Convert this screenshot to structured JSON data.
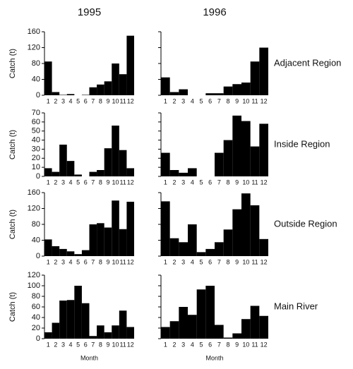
{
  "chart_data": [
    {
      "type": "bar",
      "title": "1995",
      "ylabel": "Catch (t)",
      "categories": [
        1,
        2,
        3,
        4,
        5,
        6,
        7,
        8,
        9,
        10,
        11,
        12
      ],
      "values": [
        85,
        8,
        1,
        3,
        0,
        1,
        20,
        27,
        35,
        80,
        53,
        150
      ],
      "color": "#000000",
      "ylim": [
        0,
        160
      ],
      "yticks": [
        0,
        40,
        80,
        120,
        160
      ]
    },
    {
      "type": "bar",
      "title": "1996",
      "annotation": "Adjacent Region",
      "categories": [
        1,
        2,
        3,
        4,
        5,
        6,
        7,
        8,
        9,
        10,
        11,
        12
      ],
      "values": [
        45,
        8,
        15,
        0,
        0,
        5,
        5,
        22,
        28,
        32,
        85,
        120
      ],
      "color": "#000000",
      "ylim": [
        0,
        160
      ],
      "yticks": [
        0,
        40,
        80,
        120,
        160
      ]
    },
    {
      "type": "bar",
      "ylabel": "Catch (t)",
      "categories": [
        1,
        2,
        3,
        4,
        5,
        6,
        7,
        8,
        9,
        10,
        11,
        12
      ],
      "values": [
        9,
        5,
        35,
        17,
        2,
        0,
        5,
        7,
        31,
        56,
        29,
        9
      ],
      "color": "#000000",
      "ylim": [
        0,
        70
      ],
      "yticks": [
        0,
        10,
        20,
        30,
        40,
        50,
        60,
        70
      ]
    },
    {
      "type": "bar",
      "annotation": "Inside Region",
      "categories": [
        1,
        2,
        3,
        4,
        5,
        6,
        7,
        8,
        9,
        10,
        11,
        12
      ],
      "values": [
        26,
        7,
        4,
        9,
        0,
        0,
        26,
        40,
        67,
        61,
        33,
        58
      ],
      "color": "#000000",
      "ylim": [
        0,
        70
      ],
      "yticks": [
        0,
        10,
        20,
        30,
        40,
        50,
        60,
        70
      ]
    },
    {
      "type": "bar",
      "ylabel": "Catch (t)",
      "categories": [
        1,
        2,
        3,
        4,
        5,
        6,
        7,
        8,
        9,
        10,
        11,
        12
      ],
      "values": [
        42,
        25,
        18,
        12,
        5,
        15,
        80,
        83,
        72,
        140,
        68,
        137
      ],
      "color": "#000000",
      "ylim": [
        0,
        160
      ],
      "yticks": [
        0,
        40,
        80,
        120,
        160
      ]
    },
    {
      "type": "bar",
      "annotation": "Outside Region",
      "categories": [
        1,
        2,
        3,
        4,
        5,
        6,
        7,
        8,
        9,
        10,
        11,
        12
      ],
      "values": [
        138,
        45,
        35,
        80,
        10,
        18,
        35,
        67,
        118,
        158,
        128,
        43
      ],
      "color": "#000000",
      "ylim": [
        0,
        160
      ],
      "yticks": [
        0,
        40,
        80,
        120,
        160
      ]
    },
    {
      "type": "bar",
      "ylabel": "Catch (t)",
      "xlabel": "Month",
      "categories": [
        1,
        2,
        3,
        4,
        5,
        6,
        7,
        8,
        9,
        10,
        11,
        12
      ],
      "values": [
        12,
        30,
        72,
        73,
        100,
        67,
        5,
        25,
        12,
        25,
        53,
        22
      ],
      "color": "#000000",
      "ylim": [
        0,
        120
      ],
      "yticks": [
        0,
        20,
        40,
        60,
        80,
        100,
        120
      ]
    },
    {
      "type": "bar",
      "xlabel": "Month",
      "annotation": "Main River",
      "categories": [
        1,
        2,
        3,
        4,
        5,
        6,
        7,
        8,
        9,
        10,
        11,
        12
      ],
      "values": [
        22,
        33,
        60,
        45,
        93,
        100,
        26,
        2,
        10,
        37,
        62,
        43
      ],
      "color": "#000000",
      "ylim": [
        0,
        120
      ],
      "yticks": [
        0,
        20,
        40,
        60,
        80,
        100,
        120
      ]
    }
  ]
}
